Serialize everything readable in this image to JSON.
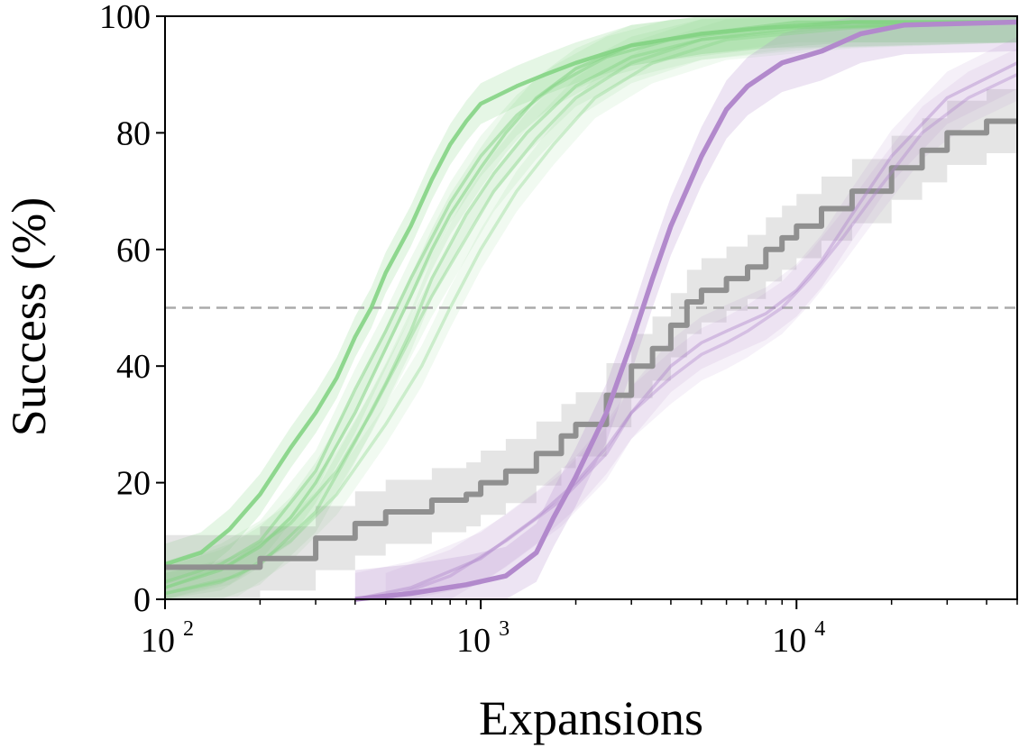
{
  "chart_data": {
    "type": "line",
    "xlabel": "Expansions",
    "ylabel": "Success (%)",
    "xscale": "log",
    "xlim": [
      100,
      50000
    ],
    "ylim": [
      0,
      100
    ],
    "x_ticks": [
      {
        "value": 100,
        "base": "10",
        "exp": "2"
      },
      {
        "value": 1000,
        "base": "10",
        "exp": "3"
      },
      {
        "value": 10000,
        "base": "10",
        "exp": "4"
      }
    ],
    "y_ticks": [
      {
        "value": 0,
        "label": "0"
      },
      {
        "value": 20,
        "label": "20"
      },
      {
        "value": 40,
        "label": "40"
      },
      {
        "value": 60,
        "label": "60"
      },
      {
        "value": 80,
        "label": "80"
      },
      {
        "value": 100,
        "label": "100"
      }
    ],
    "reference_line": {
      "y": 50,
      "style": "dashed",
      "color": "#aaaaaa"
    },
    "grid": false,
    "legend": "none",
    "series": [
      {
        "color": "#84d484",
        "opacity": 0.9,
        "width": 4.5,
        "band": 3.5,
        "stepped": false,
        "points": [
          [
            100,
            6
          ],
          [
            130,
            8
          ],
          [
            160,
            12
          ],
          [
            200,
            18
          ],
          [
            250,
            26
          ],
          [
            300,
            32
          ],
          [
            350,
            38
          ],
          [
            400,
            45
          ],
          [
            450,
            50
          ],
          [
            500,
            56
          ],
          [
            600,
            64
          ],
          [
            700,
            72
          ],
          [
            800,
            78
          ],
          [
            900,
            82
          ],
          [
            1000,
            85
          ],
          [
            1300,
            88
          ],
          [
            1600,
            90
          ],
          [
            2000,
            92
          ],
          [
            3000,
            95
          ],
          [
            5000,
            97
          ],
          [
            8000,
            98
          ],
          [
            15000,
            99
          ],
          [
            50000,
            99
          ]
        ]
      },
      {
        "color": "#84d484",
        "opacity": 0.55,
        "width": 3.5,
        "band": 3.5,
        "stepped": false,
        "points": [
          [
            100,
            2
          ],
          [
            150,
            5
          ],
          [
            200,
            9
          ],
          [
            250,
            14
          ],
          [
            300,
            20
          ],
          [
            400,
            32
          ],
          [
            500,
            43
          ],
          [
            600,
            52
          ],
          [
            700,
            60
          ],
          [
            800,
            66
          ],
          [
            1000,
            74
          ],
          [
            1200,
            80
          ],
          [
            1500,
            86
          ],
          [
            2000,
            91
          ],
          [
            3000,
            95
          ],
          [
            5000,
            97
          ],
          [
            10000,
            99
          ],
          [
            50000,
            99
          ]
        ]
      },
      {
        "color": "#84d484",
        "opacity": 0.5,
        "width": 3.5,
        "band": 3.5,
        "stepped": false,
        "points": [
          [
            100,
            3
          ],
          [
            150,
            6
          ],
          [
            200,
            10
          ],
          [
            300,
            22
          ],
          [
            400,
            36
          ],
          [
            500,
            46
          ],
          [
            600,
            55
          ],
          [
            800,
            68
          ],
          [
            1000,
            76
          ],
          [
            1300,
            83
          ],
          [
            1700,
            88
          ],
          [
            2500,
            93
          ],
          [
            4000,
            96
          ],
          [
            8000,
            98
          ],
          [
            50000,
            99
          ]
        ]
      },
      {
        "color": "#84d484",
        "opacity": 0.45,
        "width": 3.5,
        "band": 3.5,
        "stepped": false,
        "points": [
          [
            100,
            1
          ],
          [
            150,
            3
          ],
          [
            200,
            6
          ],
          [
            300,
            15
          ],
          [
            400,
            27
          ],
          [
            500,
            37
          ],
          [
            600,
            46
          ],
          [
            700,
            55
          ],
          [
            900,
            66
          ],
          [
            1100,
            73
          ],
          [
            1400,
            80
          ],
          [
            2000,
            88
          ],
          [
            3000,
            93
          ],
          [
            5000,
            96
          ],
          [
            10000,
            98
          ],
          [
            50000,
            99
          ]
        ]
      },
      {
        "color": "#84d484",
        "opacity": 0.4,
        "width": 3.5,
        "band": 3.5,
        "stepped": false,
        "points": [
          [
            100,
            2
          ],
          [
            160,
            6
          ],
          [
            250,
            13
          ],
          [
            350,
            22
          ],
          [
            450,
            32
          ],
          [
            550,
            41
          ],
          [
            700,
            52
          ],
          [
            900,
            62
          ],
          [
            1100,
            70
          ],
          [
            1500,
            79
          ],
          [
            2000,
            86
          ],
          [
            3000,
            92
          ],
          [
            5000,
            96
          ],
          [
            12000,
            98
          ],
          [
            50000,
            99
          ]
        ]
      },
      {
        "color": "#84d484",
        "opacity": 0.35,
        "width": 3.5,
        "band": 3.5,
        "stepped": false,
        "points": [
          [
            100,
            1
          ],
          [
            170,
            4
          ],
          [
            250,
            10
          ],
          [
            350,
            18
          ],
          [
            500,
            30
          ],
          [
            650,
            40
          ],
          [
            800,
            50
          ],
          [
            1000,
            60
          ],
          [
            1300,
            70
          ],
          [
            1700,
            78
          ],
          [
            2300,
            86
          ],
          [
            3500,
            92
          ],
          [
            6000,
            96
          ],
          [
            15000,
            98
          ],
          [
            50000,
            99
          ]
        ]
      },
      {
        "color": "#909090",
        "opacity": 1.0,
        "width": 6,
        "band": 5.5,
        "stepped": true,
        "points": [
          [
            100,
            5.5
          ],
          [
            200,
            7
          ],
          [
            300,
            10.5
          ],
          [
            400,
            13
          ],
          [
            500,
            15
          ],
          [
            700,
            17
          ],
          [
            900,
            18
          ],
          [
            1000,
            20
          ],
          [
            1200,
            22
          ],
          [
            1500,
            25
          ],
          [
            1800,
            28
          ],
          [
            2000,
            30
          ],
          [
            2500,
            35
          ],
          [
            3000,
            40
          ],
          [
            3500,
            43
          ],
          [
            4000,
            47
          ],
          [
            4500,
            51
          ],
          [
            5000,
            53
          ],
          [
            6000,
            55
          ],
          [
            7000,
            57
          ],
          [
            8000,
            60
          ],
          [
            9000,
            62
          ],
          [
            10000,
            64
          ],
          [
            12000,
            67
          ],
          [
            15000,
            70
          ],
          [
            20000,
            74
          ],
          [
            25000,
            77
          ],
          [
            30000,
            80
          ],
          [
            40000,
            82
          ],
          [
            50000,
            82
          ]
        ]
      },
      {
        "color": "#b289cc",
        "opacity": 1.0,
        "width": 5.5,
        "band": 5,
        "stepped": false,
        "points": [
          [
            400,
            0
          ],
          [
            600,
            1
          ],
          [
            900,
            2.5
          ],
          [
            1200,
            4
          ],
          [
            1500,
            8
          ],
          [
            1700,
            14
          ],
          [
            2000,
            21
          ],
          [
            2500,
            32
          ],
          [
            3000,
            44
          ],
          [
            3500,
            55
          ],
          [
            4000,
            64
          ],
          [
            5000,
            76
          ],
          [
            6000,
            84
          ],
          [
            7000,
            88
          ],
          [
            9000,
            92
          ],
          [
            12000,
            94
          ],
          [
            16000,
            97
          ],
          [
            22000,
            98.5
          ],
          [
            50000,
            99
          ]
        ]
      },
      {
        "color": "#b289cc",
        "opacity": 0.45,
        "width": 3.5,
        "band": 4.5,
        "stepped": false,
        "points": [
          [
            400,
            0
          ],
          [
            600,
            2
          ],
          [
            1000,
            7
          ],
          [
            1500,
            14
          ],
          [
            2000,
            20
          ],
          [
            2500,
            26
          ],
          [
            3000,
            32
          ],
          [
            4000,
            40
          ],
          [
            5000,
            44
          ],
          [
            6000,
            46
          ],
          [
            8000,
            49
          ],
          [
            10000,
            53
          ],
          [
            12000,
            58
          ],
          [
            15000,
            66
          ],
          [
            20000,
            76
          ],
          [
            30000,
            86
          ],
          [
            50000,
            92
          ]
        ]
      },
      {
        "color": "#b289cc",
        "opacity": 0.4,
        "width": 3.5,
        "band": 4.5,
        "stepped": false,
        "points": [
          [
            500,
            0
          ],
          [
            800,
            4
          ],
          [
            1200,
            10
          ],
          [
            1800,
            17
          ],
          [
            2500,
            25
          ],
          [
            3000,
            32
          ],
          [
            4000,
            38
          ],
          [
            5000,
            42
          ],
          [
            6000,
            44
          ],
          [
            7000,
            46
          ],
          [
            9000,
            50
          ],
          [
            11000,
            55
          ],
          [
            14000,
            62
          ],
          [
            18000,
            70
          ],
          [
            25000,
            80
          ],
          [
            35000,
            86
          ],
          [
            50000,
            90
          ]
        ]
      }
    ]
  }
}
